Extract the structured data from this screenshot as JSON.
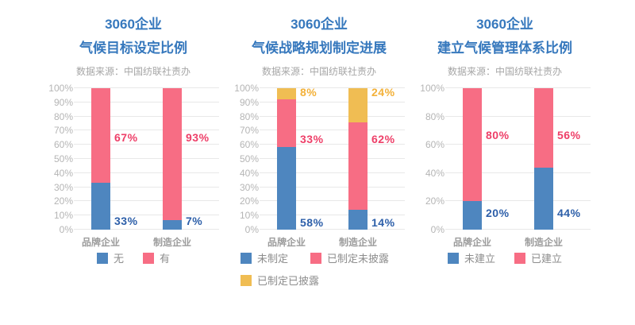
{
  "page": {
    "background": "#ffffff"
  },
  "chart_data": [
    {
      "type": "bar",
      "stacked": true,
      "title_lines": [
        "3060企业",
        "气候目标设定比例"
      ],
      "source": "数据来源：中国纺联社责办",
      "categories": [
        "品牌企业",
        "制造企业"
      ],
      "series": [
        {
          "name": "无",
          "color": "#4e86bf",
          "label_color": "#2d5fa9",
          "values": [
            33,
            7
          ]
        },
        {
          "name": "有",
          "color": "#f76d84",
          "label_color": "#ee3f68",
          "values": [
            67,
            93
          ]
        }
      ],
      "ylim": [
        0,
        100
      ],
      "y_tick_step": 10,
      "y_tick_suffix": "%",
      "grid": true,
      "legend_position": "bottom",
      "label_heights": [
        6,
        65
      ]
    },
    {
      "type": "bar",
      "stacked": true,
      "title_lines": [
        "3060企业",
        "气候战略规划制定进展"
      ],
      "source": "数据来源：中国纺联社责办",
      "categories": [
        "品牌企业",
        "制造企业"
      ],
      "series": [
        {
          "name": "未制定",
          "color": "#4e86bf",
          "label_color": "#2d5fa9",
          "values": [
            58,
            14
          ]
        },
        {
          "name": "已制定未披露",
          "color": "#f76d84",
          "label_color": "#ee3f68",
          "values": [
            33,
            62
          ]
        },
        {
          "name": "已制定已披露",
          "color": "#f0bd53",
          "label_color": "#f3b139",
          "values": [
            8,
            24
          ]
        }
      ],
      "ylim": [
        0,
        100
      ],
      "y_tick_step": 10,
      "y_tick_suffix": "%",
      "grid": true,
      "legend_position": "bottom",
      "label_heights": [
        5,
        64,
        97
      ]
    },
    {
      "type": "bar",
      "stacked": true,
      "title_lines": [
        "3060企业",
        "建立气候管理体系比例"
      ],
      "source": "数据来源：中国纺联社责办",
      "categories": [
        "品牌企业",
        "制造企业"
      ],
      "series": [
        {
          "name": "未建立",
          "color": "#4e86bf",
          "label_color": "#2d5fa9",
          "values": [
            20,
            44
          ]
        },
        {
          "name": "已建立",
          "color": "#f76d84",
          "label_color": "#ee3f68",
          "values": [
            80,
            56
          ]
        }
      ],
      "ylim": [
        0,
        100
      ],
      "y_tick_step": 20,
      "y_tick_suffix": "%",
      "grid": true,
      "legend_position": "bottom",
      "label_heights": [
        12,
        67
      ]
    }
  ]
}
